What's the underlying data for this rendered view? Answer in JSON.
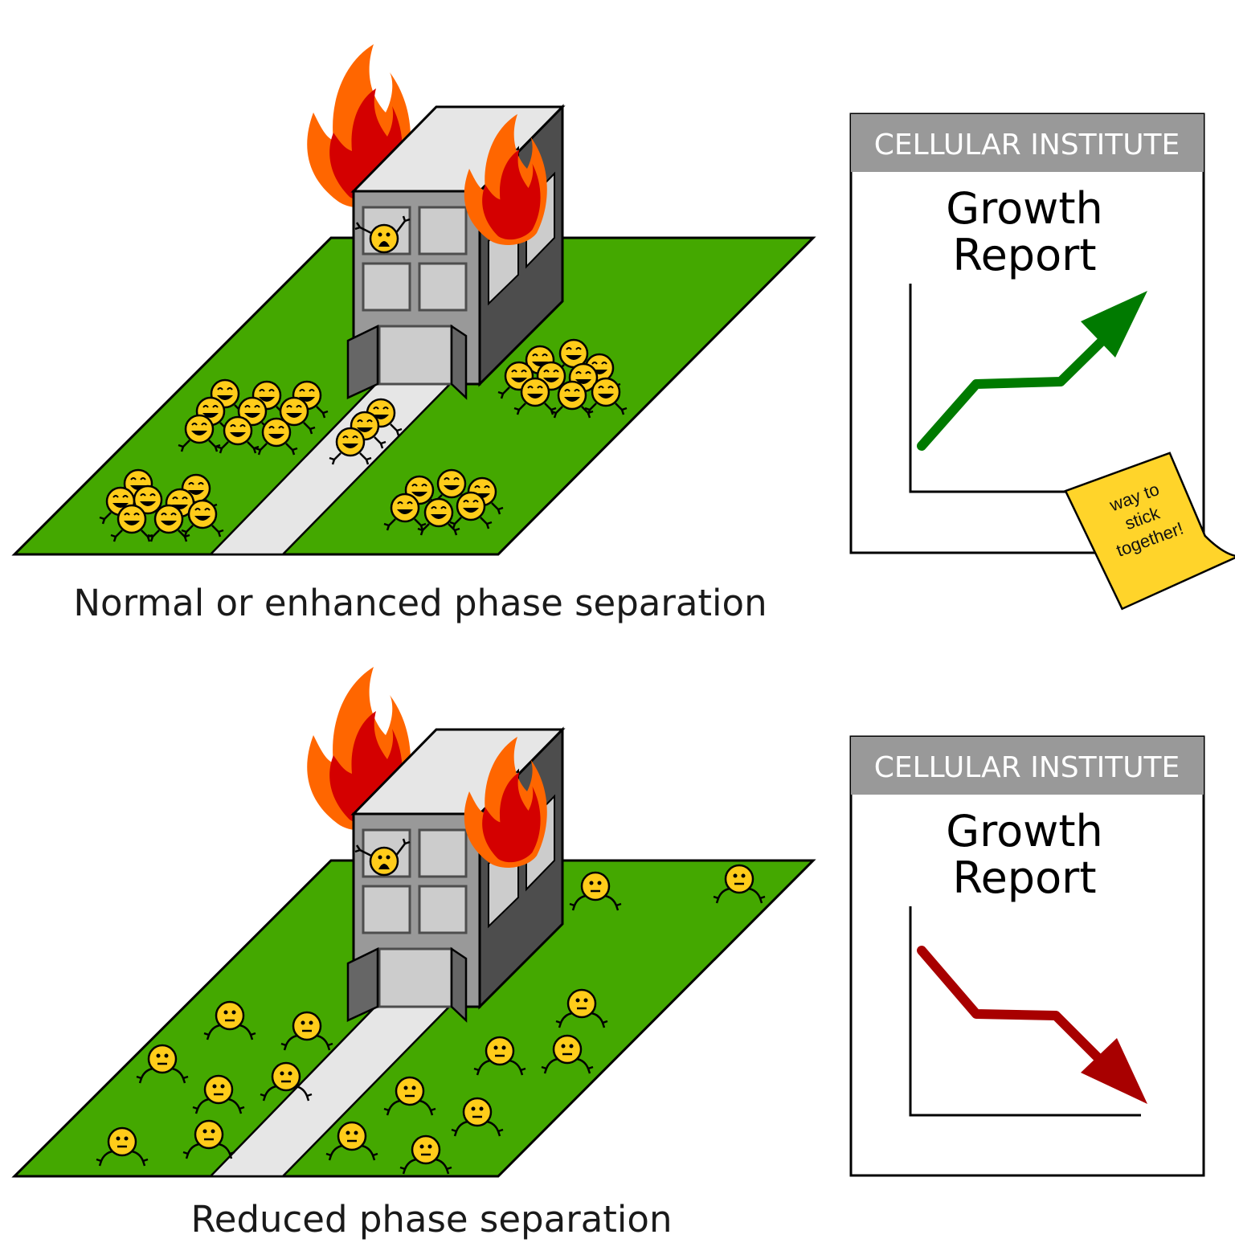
{
  "panels": [
    {
      "caption": "Normal or enhanced phase separation",
      "report": {
        "header": "CELLULAR INSTITUTE",
        "title_line1": "Growth",
        "title_line2": "Report",
        "trend": "up",
        "trend_color": "#007a00"
      },
      "sticky_note": [
        "way to",
        "stick",
        "together!"
      ],
      "cell_mood": "happy",
      "cell_arrangement": "clustered"
    },
    {
      "caption": "Reduced phase separation",
      "report": {
        "header": "CELLULAR INSTITUTE",
        "title_line1": "Growth",
        "title_line2": "Report",
        "trend": "down",
        "trend_color": "#a80000"
      },
      "cell_mood": "neutral",
      "cell_arrangement": "scattered"
    }
  ],
  "colors": {
    "grass": "#44a800",
    "path": "#e6e6e6",
    "building_front": "#999999",
    "building_side": "#4d4d4d",
    "building_roof": "#e6e6e6",
    "flame_outer": "#ff6600",
    "flame_inner": "#d40000",
    "cell": "#ffcc1a",
    "report_header": "#999999",
    "sticky_note": "#ffd42a"
  }
}
